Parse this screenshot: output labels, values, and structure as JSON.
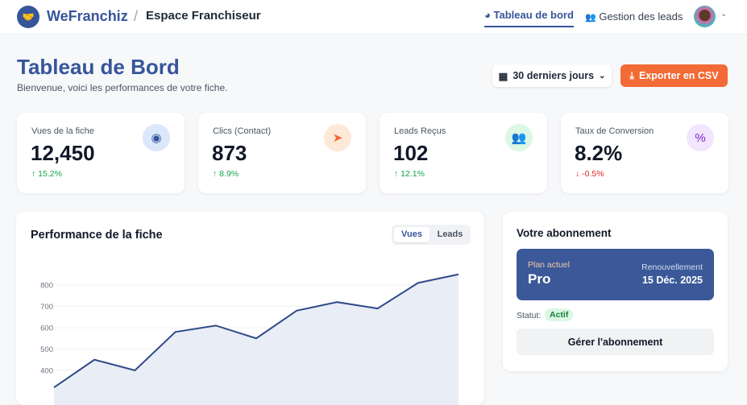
{
  "header": {
    "brand": "WeFranchiz",
    "separator": "/",
    "space": "Espace Franchiseur",
    "nav": [
      {
        "label": "Tableau de bord",
        "active": true
      },
      {
        "label": "Gestion des leads",
        "active": false
      }
    ]
  },
  "page": {
    "title": "Tableau de Bord",
    "subtitle": "Bienvenue, voici les performances de votre fiche.",
    "range_label": "30 derniers jours",
    "export_label": "Exporter en CSV"
  },
  "stats": [
    {
      "label": "Vues de la fiche",
      "value": "12,450",
      "delta": "15.2%",
      "trend": "up",
      "icon": "eye-icon",
      "color": "#36559a",
      "bg": "#dbe7fb"
    },
    {
      "label": "Clics (Contact)",
      "value": "873",
      "delta": "8.9%",
      "trend": "up",
      "icon": "cursor-icon",
      "color": "#f26a35",
      "bg": "#fde9d7"
    },
    {
      "label": "Leads Reçus",
      "value": "102",
      "delta": "12.1%",
      "trend": "up",
      "icon": "users-icon",
      "color": "#16a34a",
      "bg": "#dcf7e4"
    },
    {
      "label": "Taux de Conversion",
      "value": "8.2%",
      "delta": "-0.5%",
      "trend": "down",
      "icon": "percent-icon",
      "color": "#7e22ce",
      "bg": "#f1e6fd"
    }
  ],
  "chart": {
    "title": "Performance de la fiche",
    "tabs": [
      "Vues",
      "Leads"
    ],
    "active_tab": "Vues"
  },
  "chart_data": {
    "type": "area",
    "series": [
      {
        "values": [
          320,
          450,
          400,
          580,
          610,
          550,
          680,
          720,
          690,
          810,
          850
        ]
      }
    ],
    "yticks": [
      400,
      500,
      600,
      700,
      800
    ],
    "grid": true,
    "line_color": "#2f4b8a",
    "fill_color": "#e9edf5"
  },
  "subscription": {
    "title": "Votre abonnement",
    "plan_label": "Plan actuel",
    "plan": "Pro",
    "renewal_label": "Renouvellement",
    "renewal_date": "15 Déc. 2025",
    "status_label": "Statut:",
    "status": "Actif",
    "manage_label": "Gérer l'abonnement"
  }
}
